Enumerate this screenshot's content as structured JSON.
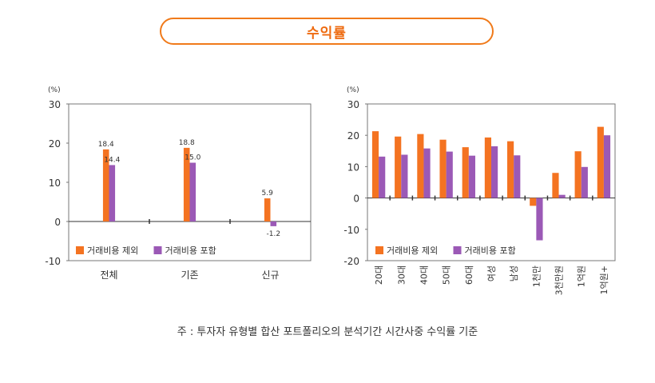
{
  "header": {
    "title": "수익률"
  },
  "colors": {
    "accent": "#f07a1a",
    "series_excl": "#f47321",
    "series_incl": "#9b59b6",
    "axis": "#333333"
  },
  "chart_data": [
    {
      "type": "bar",
      "unit_label": "(%)",
      "categories": [
        "전체",
        "기존",
        "신규"
      ],
      "ylim": [
        -10,
        30
      ],
      "yticks": [
        -10,
        0,
        10,
        20,
        30
      ],
      "legend_position": "bottom-left",
      "series": [
        {
          "name": "거래비용 제외",
          "values": [
            18.4,
            18.8,
            5.9
          ],
          "labels": [
            "18.4",
            "18.8",
            "5.9"
          ]
        },
        {
          "name": "거래비용 포함",
          "values": [
            14.4,
            15.0,
            -1.2
          ],
          "labels": [
            "14.4",
            "15.0",
            "-1.2"
          ]
        }
      ]
    },
    {
      "type": "bar",
      "unit_label": "(%)",
      "categories": [
        "20대",
        "30대",
        "40대",
        "50대",
        "60대",
        "여성",
        "남성",
        "1천만",
        "3천만원",
        "1억원",
        "1억원+"
      ],
      "ylim": [
        -20,
        30
      ],
      "yticks": [
        -20,
        -10,
        0,
        10,
        20,
        30
      ],
      "legend_position": "bottom-left",
      "series": [
        {
          "name": "거래비용 제외",
          "values": [
            21.3,
            19.6,
            20.4,
            18.6,
            16.2,
            19.3,
            18.1,
            -2.5,
            8.0,
            14.9,
            22.7
          ]
        },
        {
          "name": "거래비용 포함",
          "values": [
            13.2,
            13.8,
            15.8,
            14.8,
            13.5,
            16.5,
            13.6,
            -13.5,
            1.0,
            9.9,
            20.0
          ]
        }
      ]
    }
  ],
  "footnote": "주 : 투자자 유형별 합산 포트폴리오의 분석기간 시간사중 수익률 기준"
}
